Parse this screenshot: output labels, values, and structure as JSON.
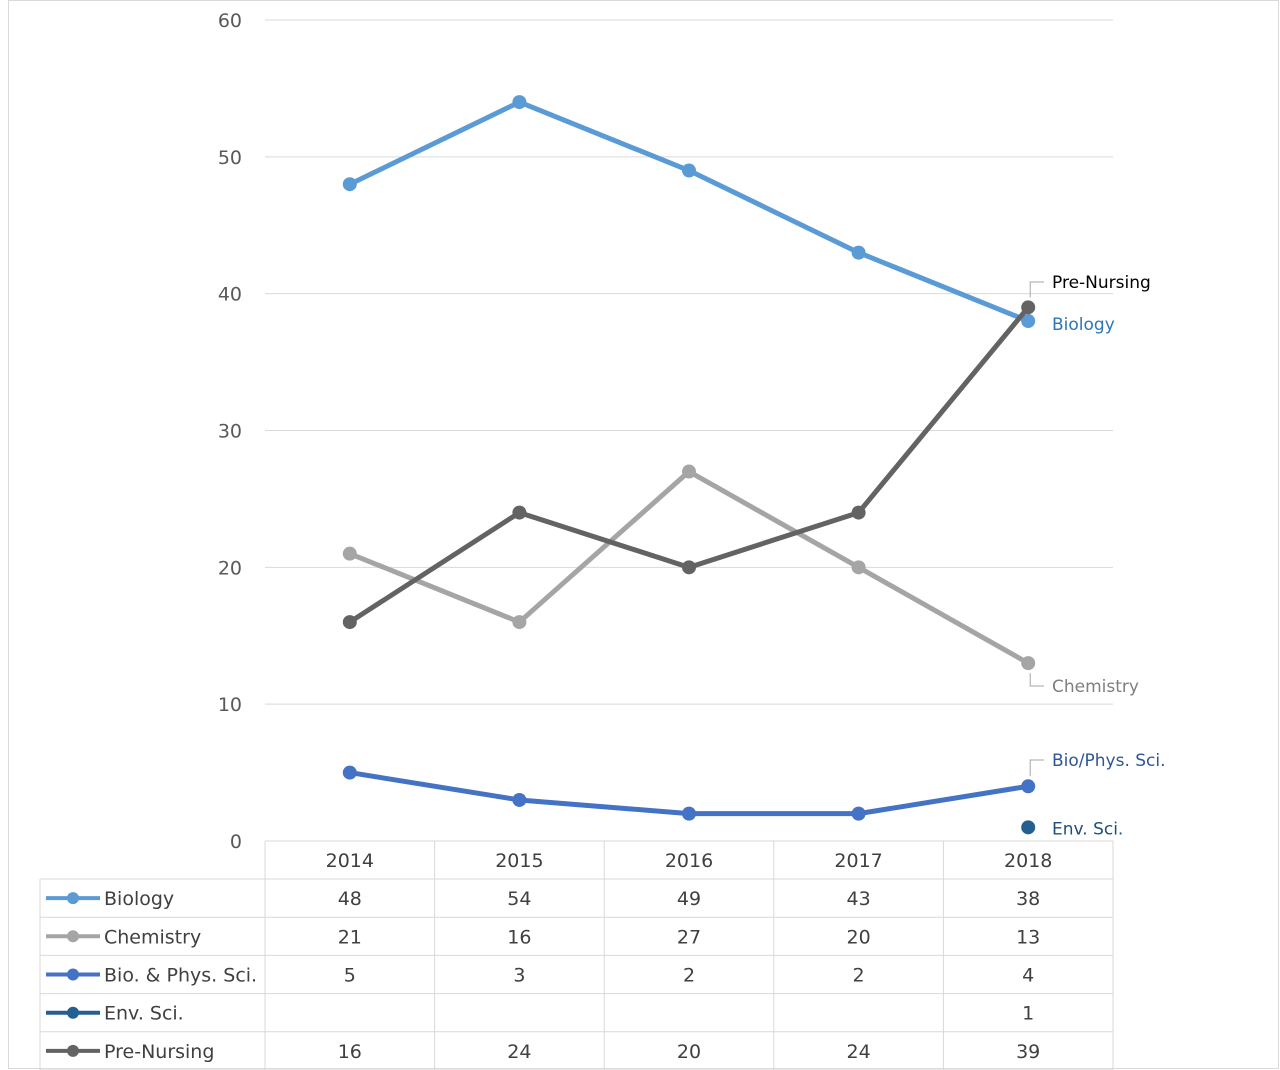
{
  "chart_data": {
    "type": "line",
    "title": "",
    "xlabel": "",
    "ylabel": "",
    "categories": [
      "2014",
      "2015",
      "2016",
      "2017",
      "2018"
    ],
    "ylim": [
      0,
      60
    ],
    "yticks": [
      0,
      10,
      20,
      30,
      40,
      50,
      60
    ],
    "grid": true,
    "legend": "data-table",
    "series": [
      {
        "name": "Biology",
        "values": [
          48,
          54,
          49,
          43,
          38
        ],
        "color": "#5b9bd5",
        "end_label": "Biology"
      },
      {
        "name": "Chemistry",
        "values": [
          21,
          16,
          27,
          20,
          13
        ],
        "color": "#a5a5a5",
        "end_label": "Chemistry"
      },
      {
        "name": "Bio. & Phys. Sci.",
        "values": [
          5,
          3,
          2,
          2,
          4
        ],
        "color": "#4472c4",
        "end_label": "Bio/Phys. Sci."
      },
      {
        "name": "Env. Sci.",
        "values": [
          null,
          null,
          null,
          null,
          1
        ],
        "color": "#255e91",
        "end_label": "Env. Sci."
      },
      {
        "name": "Pre-Nursing",
        "values": [
          16,
          24,
          20,
          24,
          39
        ],
        "color": "#636363",
        "end_label": "Pre-Nursing"
      }
    ]
  }
}
